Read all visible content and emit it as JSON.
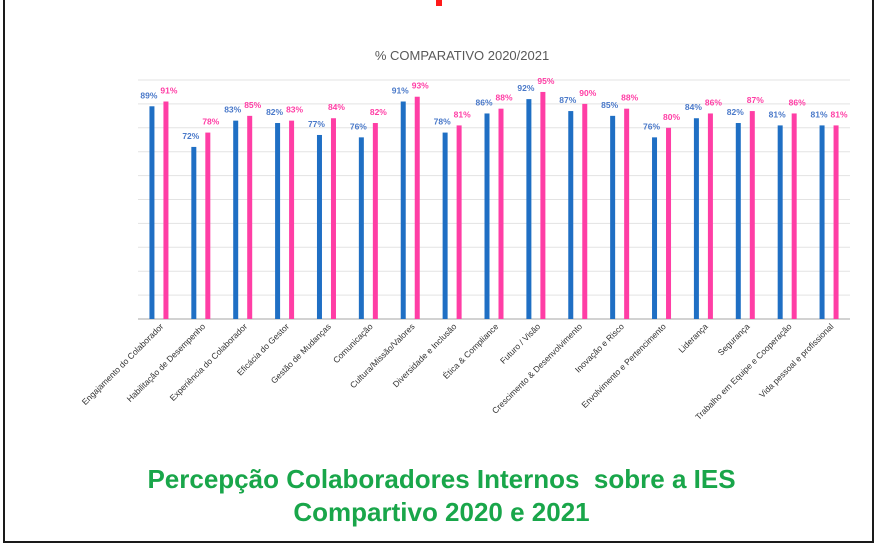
{
  "caption": {
    "line1": "Percepção Colaboradores Internos  sobre a IES",
    "line2": "Compartivo 2020 e 2021"
  },
  "colors": {
    "series_2020": "#1f6fc4",
    "series_2021": "#ff3ea5",
    "label_2020": "#4a79c9",
    "label_2021": "#ff3ea5",
    "caption": "#19a64a",
    "accent": "#ff1a1a"
  },
  "chart_data": {
    "type": "bar",
    "title": "% COMPARATIVO 2020/2021",
    "categories": [
      "Engajamento do Colaborador",
      "Habilitação de Desempenho",
      "Experiência do Colaborador",
      "Eficácia do Gestor",
      "Gestão de Mudanças",
      "Comunicação",
      "Cultura/Missão/Valores",
      "Diversidade e Inclusão",
      "Ética & Compliance",
      "Futuro / Visão",
      "Crescimento & Desenvolvimento",
      "Inovação e Risco",
      "Envolvimento e Pertencimento",
      "Liderança",
      "Segurança",
      "Trabalho em Equipe e Cooperação",
      "Vida pessoal e profissional"
    ],
    "series": [
      {
        "values": [
          89,
          72,
          83,
          82,
          77,
          76,
          91,
          78,
          86,
          92,
          87,
          85,
          76,
          84,
          82,
          81,
          81
        ]
      },
      {
        "values": [
          91,
          78,
          85,
          83,
          84,
          82,
          93,
          81,
          88,
          95,
          90,
          88,
          80,
          86,
          87,
          86,
          81
        ]
      }
    ],
    "value_labels": [
      [
        "89%",
        "72%",
        "83%",
        "82%",
        "77%",
        "76%",
        "91%",
        "78%",
        "86%",
        "92%",
        "87%",
        "85%",
        "76%",
        "84%",
        "82%",
        "81%",
        "81%"
      ],
      [
        "91%",
        "78%",
        "85%",
        "83%",
        "84%",
        "82%",
        "93%",
        "81%",
        "88%",
        "95%",
        "90%",
        "88%",
        "80%",
        "86%",
        "87%",
        "86%",
        "81%"
      ]
    ],
    "ylim": [
      0,
      100
    ],
    "grid": true,
    "legend": "none",
    "xlabel": "",
    "ylabel": ""
  }
}
